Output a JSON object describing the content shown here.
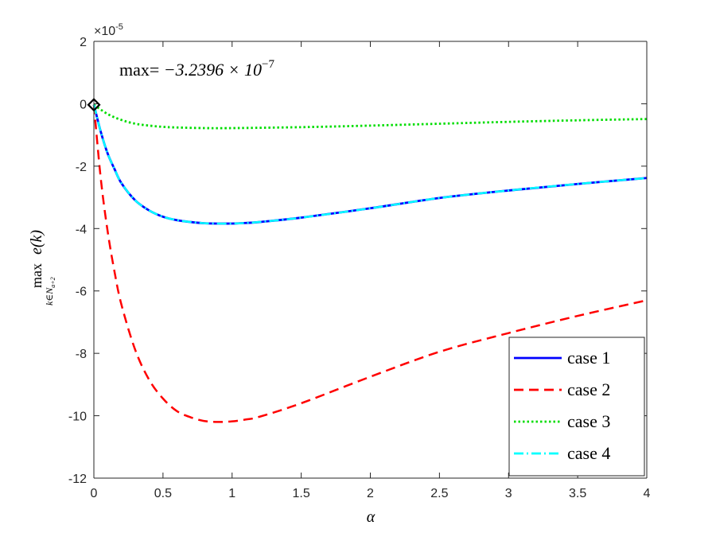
{
  "chart_data": {
    "type": "line",
    "exponent_label_base": "×10",
    "exponent_label_power": "-5",
    "annotation": {
      "prefix": "max= ",
      "mantissa": "−3.2396 × 10",
      "power": "−7"
    },
    "xlabel": "α",
    "ylabel": {
      "operator": "max",
      "subscript": "k∈N",
      "sub_subscript": "a+2",
      "function": "e(k)"
    },
    "xlim": [
      0,
      4
    ],
    "ylim": [
      -12,
      2
    ],
    "xticks": [
      0,
      0.5,
      1,
      1.5,
      2,
      2.5,
      3,
      3.5,
      4
    ],
    "xtick_labels": [
      "0",
      "0.5",
      "1",
      "1.5",
      "2",
      "2.5",
      "3",
      "3.5",
      "4"
    ],
    "yticks": [
      -12,
      -10,
      -8,
      -6,
      -4,
      -2,
      0,
      2
    ],
    "ytick_labels": [
      "-12",
      "-10",
      "-8",
      "-6",
      "-4",
      "-2",
      "0",
      "2"
    ],
    "grid": false,
    "legend_position": "bottom-right",
    "marker_point": {
      "x": 0,
      "y": -0.032396,
      "shape": "diamond",
      "color": "#000000"
    },
    "series": [
      {
        "name": "case 1",
        "color": "#0000ff",
        "style": "solid",
        "x": [
          0,
          0.05,
          0.1,
          0.15,
          0.2,
          0.3,
          0.4,
          0.5,
          0.6,
          0.7,
          0.8,
          0.9,
          1.0,
          1.1,
          1.2,
          1.5,
          2.0,
          2.5,
          3.0,
          3.5,
          4.0
        ],
        "y": [
          -0.03,
          -0.9,
          -1.6,
          -2.1,
          -2.55,
          -3.1,
          -3.42,
          -3.62,
          -3.73,
          -3.79,
          -3.83,
          -3.84,
          -3.84,
          -3.82,
          -3.79,
          -3.65,
          -3.35,
          -3.02,
          -2.78,
          -2.57,
          -2.38
        ]
      },
      {
        "name": "case 2",
        "color": "#ff0000",
        "style": "dashed",
        "x": [
          0,
          0.05,
          0.1,
          0.15,
          0.2,
          0.3,
          0.4,
          0.5,
          0.6,
          0.7,
          0.8,
          0.9,
          1.0,
          1.1,
          1.2,
          1.5,
          2.0,
          2.5,
          3.0,
          3.5,
          4.0
        ],
        "y": [
          -0.03,
          -2.4,
          -4.1,
          -5.4,
          -6.45,
          -7.9,
          -8.85,
          -9.45,
          -9.85,
          -10.05,
          -10.17,
          -10.2,
          -10.18,
          -10.12,
          -10.03,
          -9.6,
          -8.75,
          -7.95,
          -7.35,
          -6.8,
          -6.3
        ]
      },
      {
        "name": "case 3",
        "color": "#00dd00",
        "style": "dotted",
        "x": [
          0,
          0.1,
          0.2,
          0.3,
          0.4,
          0.5,
          0.6,
          0.8,
          1.0,
          1.5,
          2.0,
          2.5,
          3.0,
          3.5,
          4.0
        ],
        "y": [
          -0.03,
          -0.33,
          -0.52,
          -0.64,
          -0.7,
          -0.74,
          -0.76,
          -0.78,
          -0.78,
          -0.75,
          -0.7,
          -0.64,
          -0.58,
          -0.53,
          -0.49
        ]
      },
      {
        "name": "case 4",
        "color": "#00ffff",
        "style": "dashdot",
        "x": [
          0,
          0.05,
          0.1,
          0.15,
          0.2,
          0.3,
          0.4,
          0.5,
          0.6,
          0.7,
          0.8,
          0.9,
          1.0,
          1.1,
          1.2,
          1.5,
          2.0,
          2.5,
          3.0,
          3.5,
          4.0
        ],
        "y": [
          -0.03,
          -0.9,
          -1.6,
          -2.1,
          -2.55,
          -3.1,
          -3.42,
          -3.62,
          -3.73,
          -3.79,
          -3.83,
          -3.84,
          -3.84,
          -3.82,
          -3.79,
          -3.65,
          -3.35,
          -3.02,
          -2.78,
          -2.57,
          -2.38
        ]
      }
    ]
  }
}
